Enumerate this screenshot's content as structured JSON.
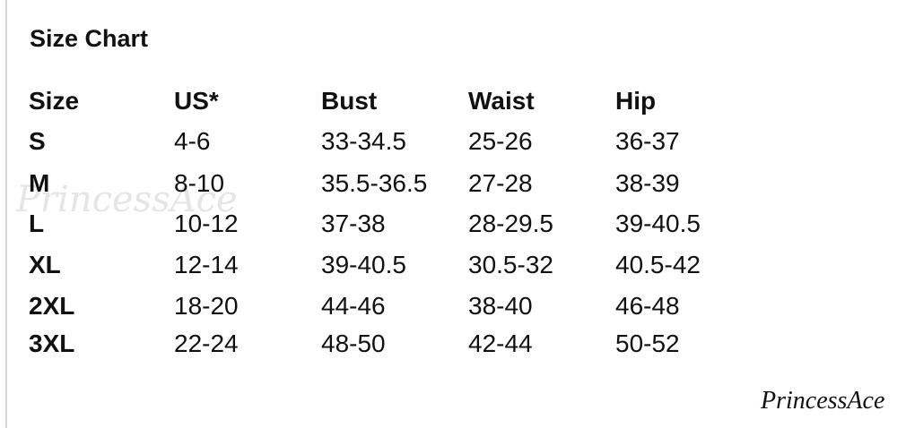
{
  "title": "Size Chart",
  "headers": [
    "Size",
    "US*",
    "Bust",
    "Waist",
    "Hip"
  ],
  "rows": [
    [
      "S",
      "4-6",
      "33-34.5",
      "25-26",
      "36-37"
    ],
    [
      "M",
      "8-10",
      "35.5-36.5",
      "27-28",
      "38-39"
    ],
    [
      "L",
      "10-12",
      "37-38",
      "28-29.5",
      "39-40.5"
    ],
    [
      "XL",
      "12-14",
      "39-40.5",
      "30.5-32",
      "40.5-42"
    ],
    [
      "2XL",
      "18-20",
      "44-46",
      "38-40",
      "46-48"
    ],
    [
      "3XL",
      "22-24",
      "48-50",
      "42-44",
      "50-52"
    ]
  ],
  "watermark": "PrincessAce",
  "logo": "PrincessAce"
}
